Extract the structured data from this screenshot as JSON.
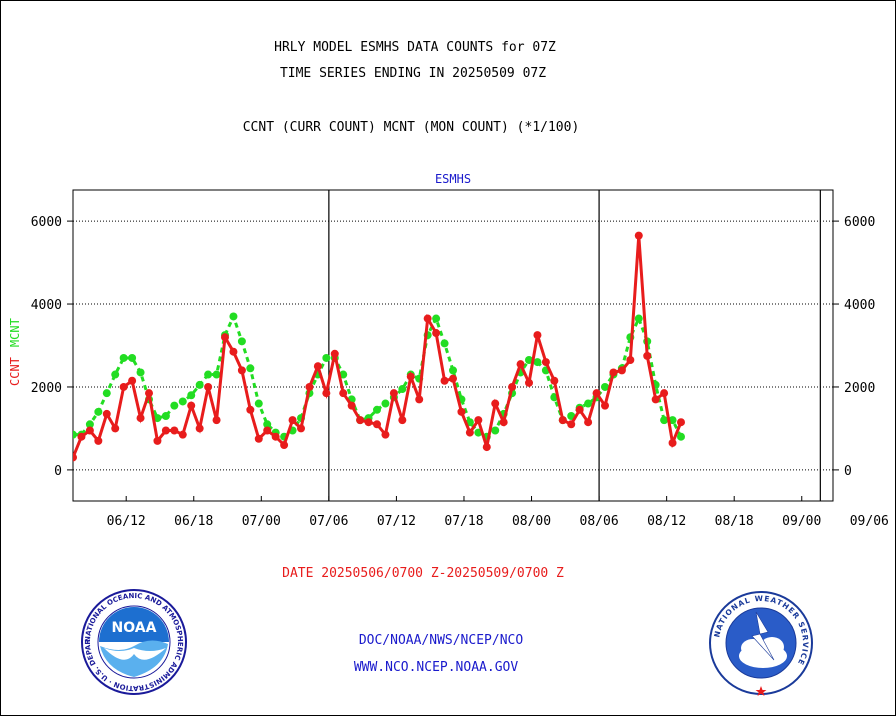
{
  "header": {
    "line1": "HRLY MODEL ESMHS DATA COUNTS for 07Z",
    "line2": "TIME SERIES ENDING IN 20250509 07Z",
    "line3": "CCNT (CURR COUNT) MCNT (MON COUNT) (*1/100)"
  },
  "footer": {
    "date_range": "DATE 20250506/0700 Z-20250509/0700 Z",
    "org": "DOC/NOAA/NWS/NCEP/NCO",
    "url": "WWW.NCO.NCEP.NOAA.GOV"
  },
  "logos": {
    "noaa_text": "NOAA",
    "noaa_ring": "NATIONAL OCEANIC AND ATMOSPHERIC ADMINISTRATION · U.S. DEPARTMENT OF COMMERCE ·",
    "nws_ring": "NATIONAL WEATHER SERVICE"
  },
  "colors": {
    "ccnt": "#e81c1c",
    "mcnt": "#22dd22",
    "title_blue": "#1a1acc",
    "date_red": "#e81c1c"
  },
  "chart_data": {
    "type": "line",
    "title": "ESMHS",
    "ylabel_ccnt": "CCNT",
    "ylabel_mcnt": "MCNT",
    "ylim": [
      -750,
      6750
    ],
    "yticks": [
      0,
      2000,
      4000,
      6000
    ],
    "xlim": [
      0,
      90
    ],
    "grid": true,
    "xticks": [
      {
        "label": "06/12",
        "x": 6.3
      },
      {
        "label": "06/18",
        "x": 14.3
      },
      {
        "label": "07/00",
        "x": 22.3
      },
      {
        "label": "07/06",
        "x": 30.3
      },
      {
        "label": "07/12",
        "x": 38.3
      },
      {
        "label": "07/18",
        "x": 46.3
      },
      {
        "label": "08/00",
        "x": 54.3
      },
      {
        "label": "08/06",
        "x": 62.3
      },
      {
        "label": "08/12",
        "x": 70.3
      },
      {
        "label": "08/18",
        "x": 78.3
      },
      {
        "label": "09/00",
        "x": 86.3
      },
      {
        "label": "09/06",
        "x": 94.3
      }
    ],
    "vlines": [
      30.3,
      62.3,
      88.5
    ],
    "series": [
      {
        "name": "CCNT",
        "values": [
          [
            0,
            300
          ],
          [
            1,
            800
          ],
          [
            2,
            950
          ],
          [
            3,
            700
          ],
          [
            4,
            1350
          ],
          [
            5,
            1000
          ],
          [
            6,
            2000
          ],
          [
            7,
            2150
          ],
          [
            8,
            1250
          ],
          [
            9,
            1850
          ],
          [
            10,
            700
          ],
          [
            11,
            950
          ],
          [
            12,
            950
          ],
          [
            13,
            850
          ],
          [
            14,
            1550
          ],
          [
            15,
            1000
          ],
          [
            16,
            2000
          ],
          [
            17,
            1200
          ],
          [
            18,
            3200
          ],
          [
            19,
            2850
          ],
          [
            20,
            2400
          ],
          [
            21,
            1450
          ],
          [
            22,
            750
          ],
          [
            23,
            950
          ],
          [
            24,
            800
          ],
          [
            25,
            600
          ],
          [
            26,
            1200
          ],
          [
            27,
            1000
          ],
          [
            28,
            2000
          ],
          [
            29,
            2500
          ],
          [
            30,
            1850
          ],
          [
            31,
            2800
          ],
          [
            32,
            1850
          ],
          [
            33,
            1550
          ],
          [
            34,
            1200
          ],
          [
            35,
            1150
          ],
          [
            36,
            1100
          ],
          [
            37,
            850
          ],
          [
            38,
            1850
          ],
          [
            39,
            1200
          ],
          [
            40,
            2250
          ],
          [
            41,
            1700
          ],
          [
            42,
            3650
          ],
          [
            43,
            3300
          ],
          [
            44,
            2150
          ],
          [
            45,
            2200
          ],
          [
            46,
            1400
          ],
          [
            47,
            900
          ],
          [
            48,
            1200
          ],
          [
            49,
            550
          ],
          [
            50,
            1600
          ],
          [
            51,
            1150
          ],
          [
            52,
            2000
          ],
          [
            53,
            2550
          ],
          [
            54,
            2100
          ],
          [
            55,
            3250
          ],
          [
            56,
            2600
          ],
          [
            57,
            2150
          ],
          [
            58,
            1200
          ],
          [
            59,
            1100
          ],
          [
            60,
            1450
          ],
          [
            61,
            1150
          ],
          [
            62,
            1850
          ],
          [
            63,
            1550
          ],
          [
            64,
            2350
          ],
          [
            65,
            2400
          ],
          [
            66,
            2650
          ],
          [
            67,
            5650
          ],
          [
            68,
            2750
          ],
          [
            69,
            1700
          ],
          [
            70,
            1850
          ],
          [
            71,
            650
          ],
          [
            72,
            1150
          ]
        ]
      },
      {
        "name": "MCNT",
        "values": [
          [
            0,
            850
          ],
          [
            1,
            850
          ],
          [
            2,
            1100
          ],
          [
            3,
            1400
          ],
          [
            4,
            1850
          ],
          [
            5,
            2300
          ],
          [
            6,
            2700
          ],
          [
            7,
            2700
          ],
          [
            8,
            2350
          ],
          [
            9,
            1700
          ],
          [
            10,
            1250
          ],
          [
            11,
            1300
          ],
          [
            12,
            1550
          ],
          [
            13,
            1650
          ],
          [
            14,
            1800
          ],
          [
            15,
            2050
          ],
          [
            16,
            2300
          ],
          [
            17,
            2300
          ],
          [
            18,
            3250
          ],
          [
            19,
            3700
          ],
          [
            20,
            3100
          ],
          [
            21,
            2450
          ],
          [
            22,
            1600
          ],
          [
            23,
            1100
          ],
          [
            24,
            900
          ],
          [
            25,
            800
          ],
          [
            26,
            950
          ],
          [
            27,
            1250
          ],
          [
            28,
            1850
          ],
          [
            29,
            2300
          ],
          [
            30,
            2700
          ],
          [
            31,
            2700
          ],
          [
            32,
            2300
          ],
          [
            33,
            1700
          ],
          [
            34,
            1200
          ],
          [
            35,
            1250
          ],
          [
            36,
            1450
          ],
          [
            37,
            1600
          ],
          [
            38,
            1750
          ],
          [
            39,
            1950
          ],
          [
            40,
            2300
          ],
          [
            41,
            2200
          ],
          [
            42,
            3250
          ],
          [
            43,
            3650
          ],
          [
            44,
            3050
          ],
          [
            45,
            2400
          ],
          [
            46,
            1700
          ],
          [
            47,
            1150
          ],
          [
            48,
            900
          ],
          [
            49,
            800
          ],
          [
            50,
            950
          ],
          [
            51,
            1350
          ],
          [
            52,
            1850
          ],
          [
            53,
            2350
          ],
          [
            54,
            2650
          ],
          [
            55,
            2600
          ],
          [
            56,
            2400
          ],
          [
            57,
            1750
          ],
          [
            58,
            1200
          ],
          [
            59,
            1300
          ],
          [
            60,
            1500
          ],
          [
            61,
            1600
          ],
          [
            62,
            1750
          ],
          [
            63,
            2000
          ],
          [
            64,
            2300
          ],
          [
            65,
            2450
          ],
          [
            66,
            3200
          ],
          [
            67,
            3650
          ],
          [
            68,
            3100
          ],
          [
            69,
            2050
          ],
          [
            70,
            1200
          ],
          [
            71,
            1200
          ],
          [
            72,
            800
          ]
        ]
      }
    ]
  }
}
